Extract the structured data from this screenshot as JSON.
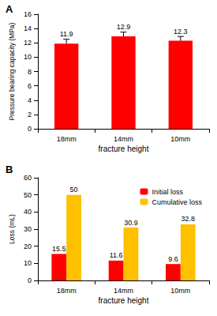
{
  "chart_data": [
    {
      "type": "bar",
      "title": "A",
      "x_label": "fracture height",
      "y_label": "Pressure bearing capacity (MPa)",
      "categories": [
        "18mm",
        "14mm",
        "10mm"
      ],
      "values": [
        11.9,
        12.9,
        12.3
      ],
      "errors": [
        0.6,
        0.6,
        0.6
      ],
      "color": "#ff0000",
      "ylim": [
        0,
        16
      ],
      "yticks": [
        0,
        2,
        4,
        6,
        8,
        10,
        12,
        14,
        16
      ],
      "grid": false,
      "data_labels": true
    },
    {
      "type": "bar",
      "title": "B",
      "x_label": "fracture height",
      "y_label": "Loss (mL)",
      "categories": [
        "18mm",
        "14mm",
        "10mm"
      ],
      "series": [
        {
          "name": "Initial loss",
          "color": "#ff0000",
          "values": [
            15.5,
            11.6,
            9.6
          ]
        },
        {
          "name": "Cumulative loss",
          "color": "#ffc000",
          "values": [
            50,
            30.9,
            32.8
          ]
        }
      ],
      "ylim": [
        0,
        60
      ],
      "yticks": [
        0,
        10,
        20,
        30,
        40,
        50,
        60
      ],
      "grid": false,
      "data_labels": true,
      "legend": "right"
    }
  ]
}
